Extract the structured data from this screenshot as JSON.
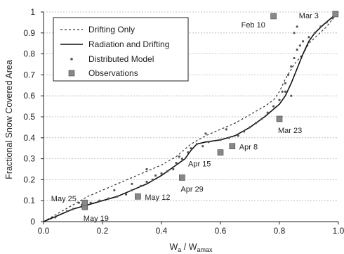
{
  "chart_data": {
    "type": "line",
    "title": "",
    "xlabel": "W",
    "xlabel_sub": "a",
    "xlabel_mid": " / W",
    "xlabel_sub2": "amax",
    "ylabel": "Fractional Snow Covered Area",
    "xlim": [
      0,
      1
    ],
    "ylim": [
      0,
      1
    ],
    "xticks": [
      0,
      0.2,
      0.4,
      0.6,
      0.8,
      1
    ],
    "xtick_labels": [
      "0.0",
      "0.2",
      "0.4",
      "0.6",
      "0.8",
      "1.0"
    ],
    "yticks": [
      0,
      0.1,
      0.2,
      0.3,
      0.4,
      0.5,
      0.6,
      0.7,
      0.8,
      0.9,
      1
    ],
    "ytick_labels": [
      "0",
      "0.1",
      "0.2",
      "0.3",
      "0.4",
      "0.5",
      "0.6",
      "0.7",
      "0.8",
      "0.9",
      "1"
    ],
    "grid": "horizontal",
    "legend_position": "top-left",
    "series": [
      {
        "name": "Drifting Only",
        "style": "dashed",
        "color": "#333333",
        "x": [
          0,
          0.05,
          0.1,
          0.15,
          0.2,
          0.3,
          0.4,
          0.45,
          0.5,
          0.55,
          0.6,
          0.65,
          0.7,
          0.75,
          0.78,
          0.8,
          0.82,
          0.85,
          0.88,
          0.9,
          0.93,
          0.96,
          1.0
        ],
        "y": [
          0,
          0.04,
          0.08,
          0.12,
          0.15,
          0.21,
          0.27,
          0.31,
          0.37,
          0.41,
          0.44,
          0.47,
          0.51,
          0.55,
          0.58,
          0.62,
          0.68,
          0.75,
          0.8,
          0.85,
          0.89,
          0.93,
          1.0
        ]
      },
      {
        "name": "Radiation and Drifting",
        "style": "solid",
        "color": "#111111",
        "x": [
          0,
          0.05,
          0.1,
          0.15,
          0.2,
          0.25,
          0.3,
          0.35,
          0.4,
          0.45,
          0.48,
          0.5,
          0.52,
          0.55,
          0.6,
          0.65,
          0.7,
          0.75,
          0.8,
          0.82,
          0.84,
          0.86,
          0.88,
          0.9,
          0.92,
          0.95,
          1.0
        ],
        "y": [
          0,
          0.03,
          0.06,
          0.08,
          0.1,
          0.12,
          0.15,
          0.18,
          0.22,
          0.27,
          0.3,
          0.34,
          0.37,
          0.38,
          0.39,
          0.41,
          0.45,
          0.5,
          0.56,
          0.6,
          0.66,
          0.73,
          0.8,
          0.86,
          0.9,
          0.94,
          1.0
        ]
      }
    ],
    "distributed_model": {
      "name": "Distributed Model",
      "color": "#555555",
      "points": [
        [
          0.04,
          0.02
        ],
        [
          0.08,
          0.05
        ],
        [
          0.1,
          0.06
        ],
        [
          0.13,
          0.08
        ],
        [
          0.16,
          0.09
        ],
        [
          0.19,
          0.1
        ],
        [
          0.22,
          0.11
        ],
        [
          0.25,
          0.12
        ],
        [
          0.28,
          0.13
        ],
        [
          0.3,
          0.15
        ],
        [
          0.33,
          0.17
        ],
        [
          0.35,
          0.19
        ],
        [
          0.37,
          0.2
        ],
        [
          0.38,
          0.22
        ],
        [
          0.4,
          0.23
        ],
        [
          0.42,
          0.24
        ],
        [
          0.44,
          0.25
        ],
        [
          0.45,
          0.28
        ],
        [
          0.47,
          0.3
        ],
        [
          0.49,
          0.33
        ],
        [
          0.5,
          0.35
        ],
        [
          0.52,
          0.37
        ],
        [
          0.54,
          0.36
        ],
        [
          0.56,
          0.38
        ],
        [
          0.6,
          0.39
        ],
        [
          0.63,
          0.4
        ],
        [
          0.66,
          0.41
        ],
        [
          0.68,
          0.43
        ],
        [
          0.7,
          0.45
        ],
        [
          0.72,
          0.47
        ],
        [
          0.74,
          0.49
        ],
        [
          0.76,
          0.52
        ],
        [
          0.78,
          0.55
        ],
        [
          0.8,
          0.58
        ],
        [
          0.81,
          0.62
        ],
        [
          0.82,
          0.66
        ],
        [
          0.83,
          0.7
        ],
        [
          0.84,
          0.74
        ],
        [
          0.85,
          0.78
        ],
        [
          0.86,
          0.82
        ],
        [
          0.87,
          0.84
        ],
        [
          0.88,
          0.86
        ],
        [
          0.9,
          0.88
        ],
        [
          0.92,
          0.9
        ],
        [
          0.94,
          0.93
        ],
        [
          0.96,
          0.95
        ],
        [
          0.98,
          0.97
        ],
        [
          0.85,
          0.9
        ],
        [
          0.86,
          0.93
        ],
        [
          0.82,
          0.62
        ],
        [
          0.84,
          0.6
        ],
        [
          0.3,
          0.18
        ],
        [
          0.24,
          0.15
        ],
        [
          0.12,
          0.09
        ],
        [
          0.35,
          0.25
        ],
        [
          0.46,
          0.31
        ],
        [
          0.55,
          0.42
        ],
        [
          0.62,
          0.44
        ]
      ]
    },
    "observations": {
      "name": "Observations",
      "color": "#888888",
      "points": [
        {
          "label": "Mar 3",
          "x": 0.99,
          "y": 0.99
        },
        {
          "label": "Feb 10",
          "x": 0.78,
          "y": 0.98
        },
        {
          "label": "Mar 23",
          "x": 0.8,
          "y": 0.49
        },
        {
          "label": "Apr 8",
          "x": 0.64,
          "y": 0.36
        },
        {
          "label": "Apr 15",
          "x": 0.6,
          "y": 0.33
        },
        {
          "label": "Apr 29",
          "x": 0.47,
          "y": 0.21
        },
        {
          "label": "May 12",
          "x": 0.32,
          "y": 0.12
        },
        {
          "label": "May 19",
          "x": 0.14,
          "y": 0.07
        },
        {
          "label": "May 25",
          "x": 0.14,
          "y": 0.09
        }
      ]
    }
  }
}
